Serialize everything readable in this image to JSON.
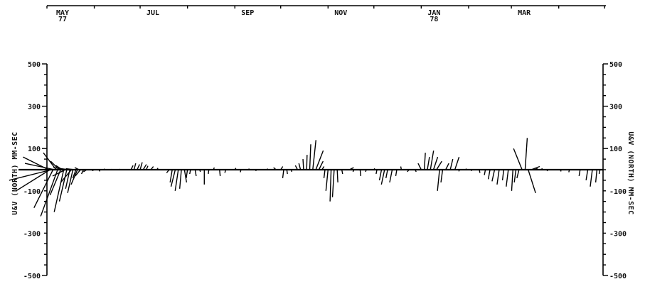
{
  "chart_data": {
    "type": "stick vector time series",
    "time_axis": {
      "ticks": [
        {
          "label": "MAY",
          "sub": "77"
        },
        {
          "label": "JUL",
          "sub": ""
        },
        {
          "label": "SEP",
          "sub": ""
        },
        {
          "label": "NOV",
          "sub": ""
        },
        {
          "label": "JAN",
          "sub": "78"
        },
        {
          "label": "MAR",
          "sub": ""
        }
      ],
      "range": [
        "1977-05-01",
        "1978-04-30"
      ]
    },
    "y_axis": {
      "label_left": "U&V (NORTH)  MM-SEC",
      "label_right": "U&V (NORTH)  MM-SEC",
      "ylim": [
        -500,
        500
      ],
      "ticks": [
        500,
        300,
        100,
        -100,
        -300,
        -500
      ]
    },
    "vectors": [
      {
        "t": "1977-05-02",
        "u": -120,
        "v": 60
      },
      {
        "t": "1977-05-03",
        "u": -160,
        "v": -100
      },
      {
        "t": "1977-05-04",
        "u": -200,
        "v": -50
      },
      {
        "t": "1977-05-05",
        "u": -90,
        "v": -180
      },
      {
        "t": "1977-05-06",
        "u": -140,
        "v": 30
      },
      {
        "t": "1977-05-07",
        "u": -60,
        "v": 80
      },
      {
        "t": "1977-05-08",
        "u": -80,
        "v": -220
      },
      {
        "t": "1977-05-09",
        "u": -40,
        "v": 40
      },
      {
        "t": "1977-05-10",
        "u": -50,
        "v": -120
      },
      {
        "t": "1977-05-11",
        "u": -30,
        "v": 20
      },
      {
        "t": "1977-05-12",
        "u": -45,
        "v": -200
      },
      {
        "t": "1977-05-13",
        "u": -60,
        "v": -30
      },
      {
        "t": "1977-05-14",
        "u": -35,
        "v": -150
      },
      {
        "t": "1977-05-15",
        "u": -70,
        "v": 10
      },
      {
        "t": "1977-05-16",
        "u": -20,
        "v": -90
      },
      {
        "t": "1977-05-17",
        "u": -50,
        "v": -60
      },
      {
        "t": "1977-05-18",
        "u": -25,
        "v": -110
      },
      {
        "t": "1977-05-19",
        "u": -40,
        "v": 5
      },
      {
        "t": "1977-05-20",
        "u": -15,
        "v": -40
      },
      {
        "t": "1977-05-21",
        "u": -30,
        "v": -70
      },
      {
        "t": "1977-05-22",
        "u": -20,
        "v": 10
      },
      {
        "t": "1977-05-23",
        "u": -25,
        "v": -30
      },
      {
        "t": "1977-05-25",
        "u": -10,
        "v": -20
      },
      {
        "t": "1977-05-27",
        "u": -15,
        "v": -10
      },
      {
        "t": "1977-06-01",
        "u": -10,
        "v": -5
      },
      {
        "t": "1977-06-04",
        "u": 5,
        "v": -8
      },
      {
        "t": "1977-06-08",
        "u": -5,
        "v": 4
      },
      {
        "t": "1977-06-12",
        "u": 4,
        "v": 2
      },
      {
        "t": "1977-06-18",
        "u": -3,
        "v": 3
      },
      {
        "t": "1977-06-25",
        "u": 10,
        "v": 20
      },
      {
        "t": "1977-06-27",
        "u": 8,
        "v": 30
      },
      {
        "t": "1977-06-29",
        "u": 12,
        "v": 25
      },
      {
        "t": "1977-07-01",
        "u": 10,
        "v": 35
      },
      {
        "t": "1977-07-03",
        "u": 15,
        "v": 25
      },
      {
        "t": "1977-07-05",
        "u": 8,
        "v": 18
      },
      {
        "t": "1977-07-08",
        "u": 12,
        "v": 15
      },
      {
        "t": "1977-07-12",
        "u": 5,
        "v": 8
      },
      {
        "t": "1977-07-20",
        "u": -12,
        "v": -15
      },
      {
        "t": "1977-07-22",
        "u": -10,
        "v": -60
      },
      {
        "t": "1977-07-24",
        "u": -20,
        "v": -80
      },
      {
        "t": "1977-07-26",
        "u": -15,
        "v": -100
      },
      {
        "t": "1977-07-28",
        "u": -8,
        "v": -90
      },
      {
        "t": "1977-07-30",
        "u": 10,
        "v": -60
      },
      {
        "t": "1977-08-01",
        "u": -6,
        "v": -40
      },
      {
        "t": "1977-08-03",
        "u": -4,
        "v": -20
      },
      {
        "t": "1977-08-06",
        "u": 5,
        "v": -30
      },
      {
        "t": "1977-08-09",
        "u": 3,
        "v": -10
      },
      {
        "t": "1977-08-12",
        "u": 0,
        "v": -70
      },
      {
        "t": "1977-08-15",
        "u": -3,
        "v": -20
      },
      {
        "t": "1977-08-18",
        "u": 4,
        "v": 10
      },
      {
        "t": "1977-08-22",
        "u": 3,
        "v": -30
      },
      {
        "t": "1977-08-26",
        "u": -4,
        "v": -15
      },
      {
        "t": "1977-09-01",
        "u": 5,
        "v": 8
      },
      {
        "t": "1977-09-05",
        "u": -3,
        "v": -12
      },
      {
        "t": "1977-09-10",
        "u": 3,
        "v": 5
      },
      {
        "t": "1977-09-15",
        "u": -2,
        "v": -6
      },
      {
        "t": "1977-09-22",
        "u": 4,
        "v": 5
      },
      {
        "t": "1977-09-28",
        "u": -12,
        "v": 10
      },
      {
        "t": "1977-10-01",
        "u": 10,
        "v": 15
      },
      {
        "t": "1977-10-03",
        "u": -5,
        "v": -40
      },
      {
        "t": "1977-10-05",
        "u": 3,
        "v": -20
      },
      {
        "t": "1977-10-08",
        "u": 2,
        "v": -10
      },
      {
        "t": "1977-10-12",
        "u": -10,
        "v": 20
      },
      {
        "t": "1977-10-14",
        "u": -8,
        "v": 30
      },
      {
        "t": "1977-10-16",
        "u": -3,
        "v": 50
      },
      {
        "t": "1977-10-18",
        "u": 2,
        "v": 70
      },
      {
        "t": "1977-10-20",
        "u": 5,
        "v": 120
      },
      {
        "t": "1977-10-22",
        "u": 15,
        "v": 140
      },
      {
        "t": "1977-10-24",
        "u": 35,
        "v": 90
      },
      {
        "t": "1977-10-26",
        "u": 20,
        "v": 40
      },
      {
        "t": "1977-10-28",
        "u": 10,
        "v": 15
      },
      {
        "t": "1977-10-30",
        "u": -5,
        "v": -40
      },
      {
        "t": "1977-11-01",
        "u": -10,
        "v": -100
      },
      {
        "t": "1977-11-03",
        "u": -5,
        "v": -150
      },
      {
        "t": "1977-11-05",
        "u": -8,
        "v": -130
      },
      {
        "t": "1977-11-07",
        "u": 3,
        "v": -60
      },
      {
        "t": "1977-11-10",
        "u": 4,
        "v": -20
      },
      {
        "t": "1977-11-15",
        "u": 20,
        "v": 10
      },
      {
        "t": "1977-11-18",
        "u": -5,
        "v": -10
      },
      {
        "t": "1977-11-22",
        "u": 3,
        "v": -30
      },
      {
        "t": "1977-11-26",
        "u": -3,
        "v": -10
      },
      {
        "t": "1977-12-01",
        "u": 4,
        "v": 6
      },
      {
        "t": "1977-12-03",
        "u": -4,
        "v": -20
      },
      {
        "t": "1977-12-06",
        "u": -10,
        "v": -50
      },
      {
        "t": "1977-12-08",
        "u": -15,
        "v": -70
      },
      {
        "t": "1977-12-10",
        "u": -8,
        "v": -40
      },
      {
        "t": "1977-12-13",
        "u": -12,
        "v": -60
      },
      {
        "t": "1977-12-16",
        "u": -5,
        "v": -30
      },
      {
        "t": "1977-12-19",
        "u": -3,
        "v": 15
      },
      {
        "t": "1977-12-24",
        "u": -8,
        "v": -10
      },
      {
        "t": "1977-12-28",
        "u": 5,
        "v": -10
      },
      {
        "t": "1978-01-01",
        "u": -15,
        "v": 30
      },
      {
        "t": "1978-01-03",
        "u": 5,
        "v": 80
      },
      {
        "t": "1978-01-05",
        "u": 10,
        "v": 60
      },
      {
        "t": "1978-01-07",
        "u": 15,
        "v": 90
      },
      {
        "t": "1978-01-09",
        "u": 20,
        "v": 60
      },
      {
        "t": "1978-01-11",
        "u": 25,
        "v": 40
      },
      {
        "t": "1978-01-13",
        "u": -10,
        "v": -100
      },
      {
        "t": "1978-01-15",
        "u": -8,
        "v": -60
      },
      {
        "t": "1978-01-17",
        "u": 15,
        "v": 30
      },
      {
        "t": "1978-01-20",
        "u": 12,
        "v": 50
      },
      {
        "t": "1978-01-23",
        "u": 20,
        "v": 60
      },
      {
        "t": "1978-01-26",
        "u": -3,
        "v": -8
      },
      {
        "t": "1978-01-30",
        "u": 4,
        "v": 5
      },
      {
        "t": "1978-02-03",
        "u": -2,
        "v": -6
      },
      {
        "t": "1978-02-08",
        "u": 3,
        "v": -15
      },
      {
        "t": "1978-02-12",
        "u": -5,
        "v": -25
      },
      {
        "t": "1978-02-15",
        "u": -8,
        "v": -45
      },
      {
        "t": "1978-02-18",
        "u": -12,
        "v": -55
      },
      {
        "t": "1978-02-21",
        "u": -10,
        "v": -70
      },
      {
        "t": "1978-02-24",
        "u": -6,
        "v": -50
      },
      {
        "t": "1978-02-27",
        "u": -10,
        "v": -80
      },
      {
        "t": "1978-03-02",
        "u": -6,
        "v": -100
      },
      {
        "t": "1978-03-04",
        "u": -8,
        "v": -60
      },
      {
        "t": "1978-03-06",
        "u": -10,
        "v": -40
      },
      {
        "t": "1978-03-08",
        "u": -40,
        "v": 100
      },
      {
        "t": "1978-03-10",
        "u": 10,
        "v": 150
      },
      {
        "t": "1978-03-12",
        "u": 35,
        "v": -110
      },
      {
        "t": "1978-03-14",
        "u": 40,
        "v": 15
      },
      {
        "t": "1978-03-16",
        "u": 15,
        "v": 6
      },
      {
        "t": "1978-03-20",
        "u": 10,
        "v": 5
      },
      {
        "t": "1978-03-25",
        "u": -5,
        "v": -6
      },
      {
        "t": "1978-04-02",
        "u": 4,
        "v": -8
      },
      {
        "t": "1978-04-08",
        "u": -3,
        "v": -12
      },
      {
        "t": "1978-04-15",
        "u": -5,
        "v": -30
      },
      {
        "t": "1978-04-20",
        "u": -8,
        "v": -50
      },
      {
        "t": "1978-04-23",
        "u": -10,
        "v": -80
      },
      {
        "t": "1978-04-26",
        "u": -6,
        "v": -60
      },
      {
        "t": "1978-04-28",
        "u": -4,
        "v": -20
      }
    ],
    "grid": false,
    "legend": "none"
  }
}
